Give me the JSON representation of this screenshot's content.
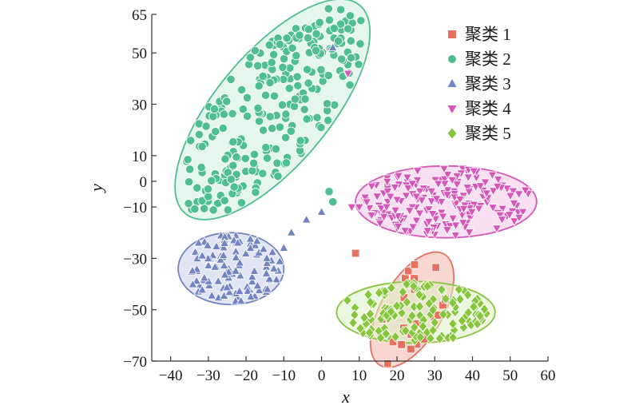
{
  "chart_data": {
    "type": "scatter",
    "xlabel": "x",
    "ylabel": "y",
    "xlim": [
      -45,
      60
    ],
    "ylim": [
      -70,
      65
    ],
    "xticks": [
      -40,
      -30,
      -20,
      -10,
      0,
      10,
      20,
      30,
      40,
      50,
      60
    ],
    "xtick_labels": [
      "−40",
      "−30",
      "−20",
      "−10",
      "0",
      "10",
      "20",
      "30",
      "40",
      "50",
      "60"
    ],
    "yticks": [
      -70,
      -50,
      -30,
      -10,
      0,
      10,
      30,
      50,
      65
    ],
    "ytick_labels": [
      "−70",
      "−50",
      "−30",
      "−10",
      "0",
      "10",
      "30",
      "50",
      "65"
    ],
    "legend_position": "top-right",
    "series": [
      {
        "name": "聚类 1",
        "marker": "square",
        "color": "#e8705f",
        "points_spec": "cluster centered near (24, -50) inside tilted ellipse, plus one outlier at (9, -28)",
        "ellipse": {
          "cx": 24,
          "cy": -50,
          "rx": 17,
          "ry": 12,
          "angle_deg": -60
        },
        "fill_color": "#f4b4a8"
      },
      {
        "name": "聚类 2",
        "marker": "circle",
        "color": "#4fbf91",
        "points_spec": "large cluster centered near (-13, 28) inside tilted ellipse",
        "ellipse": {
          "cx": -13,
          "cy": 28,
          "rx": 36,
          "ry": 22,
          "angle_deg": -50
        },
        "fill_color": "#cfeee2"
      },
      {
        "name": "聚类 3",
        "marker": "triangle-up",
        "color": "#7384c4",
        "points_spec": "cluster centered near (-24, -34) inside ellipse",
        "ellipse": {
          "cx": -24,
          "cy": -34,
          "rx": 14,
          "ry": 14,
          "angle_deg": 0
        },
        "fill_color": "#c7cde9"
      },
      {
        "name": "聚类 4",
        "marker": "triangle-down",
        "color": "#d657b9",
        "points_spec": "cluster centered near (33, -8) inside ellipse",
        "ellipse": {
          "cx": 33,
          "cy": -8,
          "rx": 24,
          "ry": 14,
          "angle_deg": 0
        },
        "fill_color": "#f2c7e8"
      },
      {
        "name": "聚类 5",
        "marker": "diamond",
        "color": "#86c63d",
        "points_spec": "cluster centered near (25, -51) inside ellipse",
        "ellipse": {
          "cx": 25,
          "cy": -51,
          "rx": 21,
          "ry": 12,
          "angle_deg": 0
        },
        "fill_color": "#ddf0c4"
      }
    ]
  }
}
